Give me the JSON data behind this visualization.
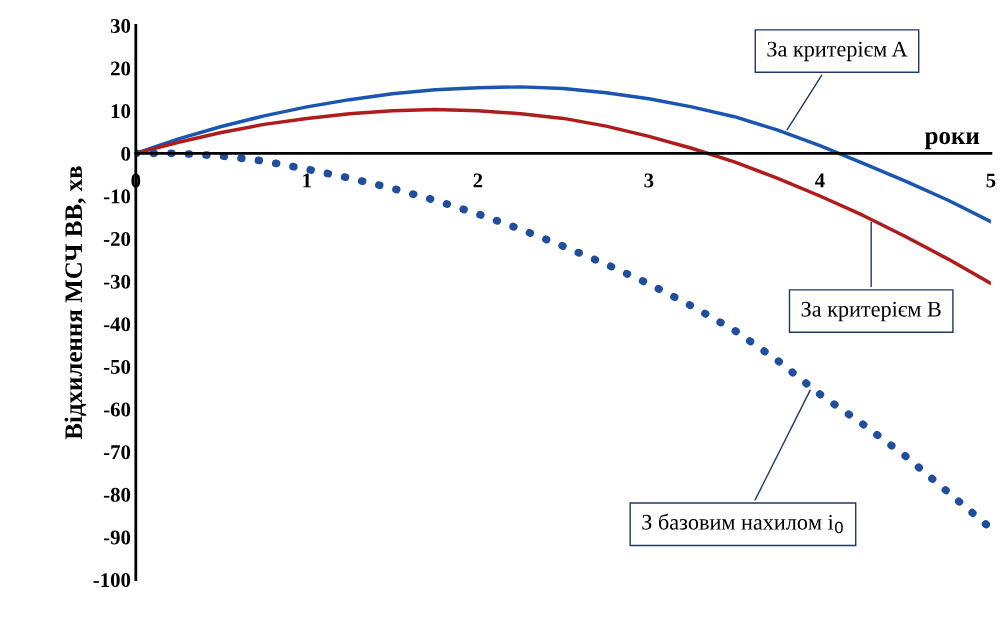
{
  "chart_data": {
    "type": "line",
    "xlabel": "роки",
    "ylabel": "Відхилення МСЧ ВВ, хв",
    "x": [
      0,
      0.25,
      0.5,
      0.75,
      1,
      1.25,
      1.5,
      1.75,
      2,
      2.25,
      2.5,
      2.75,
      3,
      3.25,
      3.5,
      3.75,
      4,
      4.25,
      4.5,
      4.75,
      5
    ],
    "series": [
      {
        "color": "#1a56b0",
        "line_style": "solid",
        "values": [
          0,
          3.4,
          6.3,
          8.8,
          10.9,
          12.6,
          14,
          14.9,
          15.4,
          15.6,
          15.2,
          14.2,
          12.8,
          10.9,
          8.6,
          5.5,
          1.8,
          -2.3,
          -6.5,
          -11,
          -16
        ]
      },
      {
        "color": "#b01c1c",
        "line_style": "solid",
        "values": [
          0,
          2.6,
          4.9,
          6.8,
          8.2,
          9.3,
          10,
          10.3,
          10,
          9.3,
          8.2,
          6.4,
          4,
          1.2,
          -2,
          -5.8,
          -10,
          -14.5,
          -19.5,
          -24.8,
          -30.5
        ]
      },
      {
        "color": "#1f4e9c",
        "line_style": "dotted",
        "values": [
          0,
          0,
          -0.6,
          -1.8,
          -3.7,
          -5.8,
          -8.2,
          -11,
          -14.2,
          -17.8,
          -21.8,
          -26,
          -30.6,
          -35.8,
          -41.5,
          -48.5,
          -56.5,
          -63.5,
          -71,
          -79.5,
          -88
        ]
      }
    ],
    "xlim": [
      0,
      5
    ],
    "ylim": [
      -100,
      30
    ],
    "xticks": [
      0,
      1,
      2,
      3,
      4,
      5
    ],
    "yticks": [
      -100,
      -90,
      -80,
      -70,
      -60,
      -50,
      -40,
      -30,
      -20,
      -10,
      0,
      10,
      20,
      30
    ],
    "grid": false,
    "legend": false,
    "annotations": [
      {
        "text": "За критерієм A",
        "x": 3.8,
        "y": 5.0
      },
      {
        "text": "За критерієм B",
        "x": 4.3,
        "y": -15.5
      },
      {
        "text": "З базовим нахилом i$_{0}$",
        "x": 3.95,
        "y": -55
      }
    ]
  }
}
